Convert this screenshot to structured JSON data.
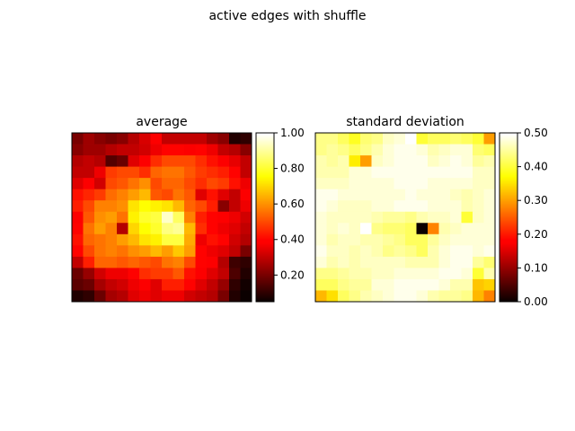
{
  "figure_title": "active edges with shuffle",
  "colormap": "hot",
  "colors": {
    "stops": [
      "#0b0000",
      "#ff0000",
      "#ffff00",
      "#ffffff"
    ],
    "frame": "#000000"
  },
  "chart_data": [
    {
      "type": "heatmap",
      "title": "average",
      "rows": 15,
      "cols": 16,
      "vmin": 0.05,
      "vmax": 1.0,
      "colorbar_ticks": [
        {
          "value": 0.2,
          "label": "0.20"
        },
        {
          "value": 0.4,
          "label": "0.40"
        },
        {
          "value": 0.6,
          "label": "0.60"
        },
        {
          "value": 0.8,
          "label": "0.80"
        },
        {
          "value": 1.0,
          "label": "1.00"
        }
      ],
      "values": [
        [
          0.2,
          0.25,
          0.22,
          0.2,
          0.22,
          0.28,
          0.33,
          0.38,
          0.3,
          0.3,
          0.3,
          0.3,
          0.25,
          0.22,
          0.08,
          0.1
        ],
        [
          0.22,
          0.25,
          0.25,
          0.28,
          0.3,
          0.3,
          0.32,
          0.36,
          0.4,
          0.4,
          0.38,
          0.4,
          0.36,
          0.3,
          0.28,
          0.22
        ],
        [
          0.28,
          0.3,
          0.28,
          0.15,
          0.18,
          0.34,
          0.38,
          0.46,
          0.5,
          0.5,
          0.5,
          0.46,
          0.42,
          0.38,
          0.35,
          0.3
        ],
        [
          0.3,
          0.3,
          0.36,
          0.48,
          0.5,
          0.5,
          0.46,
          0.54,
          0.56,
          0.56,
          0.52,
          0.48,
          0.46,
          0.44,
          0.4,
          0.3
        ],
        [
          0.34,
          0.38,
          0.32,
          0.5,
          0.52,
          0.56,
          0.6,
          0.5,
          0.54,
          0.54,
          0.5,
          0.46,
          0.5,
          0.48,
          0.42,
          0.36
        ],
        [
          0.42,
          0.45,
          0.48,
          0.55,
          0.58,
          0.62,
          0.66,
          0.52,
          0.5,
          0.56,
          0.52,
          0.34,
          0.42,
          0.34,
          0.3,
          0.38
        ],
        [
          0.44,
          0.5,
          0.58,
          0.58,
          0.6,
          0.72,
          0.76,
          0.74,
          0.72,
          0.66,
          0.54,
          0.5,
          0.44,
          0.22,
          0.3,
          0.36
        ],
        [
          0.38,
          0.52,
          0.6,
          0.62,
          0.56,
          0.74,
          0.8,
          0.82,
          0.95,
          0.85,
          0.58,
          0.44,
          0.4,
          0.38,
          0.36,
          0.32
        ],
        [
          0.4,
          0.56,
          0.62,
          0.58,
          0.28,
          0.7,
          0.76,
          0.8,
          0.88,
          0.9,
          0.66,
          0.46,
          0.4,
          0.36,
          0.34,
          0.3
        ],
        [
          0.42,
          0.54,
          0.56,
          0.58,
          0.62,
          0.66,
          0.72,
          0.74,
          0.82,
          0.82,
          0.64,
          0.36,
          0.42,
          0.4,
          0.32,
          0.28
        ],
        [
          0.4,
          0.5,
          0.56,
          0.58,
          0.56,
          0.6,
          0.62,
          0.66,
          0.62,
          0.68,
          0.62,
          0.4,
          0.36,
          0.34,
          0.3,
          0.2
        ],
        [
          0.3,
          0.44,
          0.54,
          0.54,
          0.52,
          0.54,
          0.52,
          0.5,
          0.56,
          0.58,
          0.5,
          0.4,
          0.38,
          0.28,
          0.12,
          0.1
        ],
        [
          0.18,
          0.24,
          0.32,
          0.36,
          0.36,
          0.4,
          0.46,
          0.48,
          0.48,
          0.52,
          0.42,
          0.38,
          0.34,
          0.3,
          0.14,
          0.08
        ],
        [
          0.16,
          0.18,
          0.26,
          0.3,
          0.32,
          0.36,
          0.38,
          0.34,
          0.44,
          0.44,
          0.4,
          0.34,
          0.3,
          0.24,
          0.1,
          0.06
        ],
        [
          0.08,
          0.1,
          0.18,
          0.26,
          0.28,
          0.34,
          0.36,
          0.34,
          0.36,
          0.36,
          0.32,
          0.3,
          0.28,
          0.2,
          0.08,
          0.05
        ]
      ]
    },
    {
      "type": "heatmap",
      "title": "standard deviation",
      "rows": 15,
      "cols": 16,
      "vmin": 0.0,
      "vmax": 0.5,
      "colorbar_ticks": [
        {
          "value": 0.0,
          "label": "0.00"
        },
        {
          "value": 0.1,
          "label": "0.10"
        },
        {
          "value": 0.2,
          "label": "0.20"
        },
        {
          "value": 0.3,
          "label": "0.30"
        },
        {
          "value": 0.4,
          "label": "0.40"
        },
        {
          "value": 0.5,
          "label": "0.50"
        }
      ],
      "values": [
        [
          0.44,
          0.44,
          0.42,
          0.39,
          0.43,
          0.44,
          0.47,
          0.48,
          0.5,
          0.4,
          0.42,
          0.42,
          0.43,
          0.42,
          0.4,
          0.3
        ],
        [
          0.44,
          0.45,
          0.44,
          0.42,
          0.44,
          0.46,
          0.48,
          0.49,
          0.49,
          0.48,
          0.46,
          0.47,
          0.48,
          0.48,
          0.43,
          0.42
        ],
        [
          0.46,
          0.45,
          0.46,
          0.36,
          0.3,
          0.47,
          0.48,
          0.49,
          0.49,
          0.49,
          0.47,
          0.48,
          0.49,
          0.48,
          0.45,
          0.46
        ],
        [
          0.46,
          0.46,
          0.46,
          0.48,
          0.48,
          0.49,
          0.49,
          0.49,
          0.49,
          0.49,
          0.49,
          0.49,
          0.49,
          0.49,
          0.47,
          0.47
        ],
        [
          0.47,
          0.47,
          0.47,
          0.48,
          0.48,
          0.48,
          0.48,
          0.49,
          0.49,
          0.49,
          0.48,
          0.48,
          0.48,
          0.48,
          0.47,
          0.47
        ],
        [
          0.49,
          0.49,
          0.48,
          0.48,
          0.48,
          0.48,
          0.48,
          0.48,
          0.49,
          0.48,
          0.48,
          0.48,
          0.47,
          0.46,
          0.47,
          0.48
        ],
        [
          0.49,
          0.48,
          0.47,
          0.47,
          0.47,
          0.48,
          0.48,
          0.49,
          0.49,
          0.49,
          0.48,
          0.48,
          0.48,
          0.46,
          0.47,
          0.48
        ],
        [
          0.48,
          0.47,
          0.47,
          0.47,
          0.47,
          0.46,
          0.45,
          0.45,
          0.44,
          0.46,
          0.47,
          0.47,
          0.48,
          0.4,
          0.47,
          0.48
        ],
        [
          0.48,
          0.47,
          0.48,
          0.47,
          0.5,
          0.44,
          0.43,
          0.43,
          0.42,
          0.0,
          0.28,
          0.46,
          0.47,
          0.48,
          0.48,
          0.48
        ],
        [
          0.48,
          0.46,
          0.47,
          0.47,
          0.46,
          0.46,
          0.45,
          0.44,
          0.42,
          0.42,
          0.45,
          0.47,
          0.48,
          0.48,
          0.48,
          0.48
        ],
        [
          0.49,
          0.47,
          0.47,
          0.46,
          0.47,
          0.46,
          0.44,
          0.45,
          0.44,
          0.42,
          0.46,
          0.48,
          0.49,
          0.49,
          0.48,
          0.49
        ],
        [
          0.48,
          0.46,
          0.47,
          0.46,
          0.47,
          0.47,
          0.47,
          0.47,
          0.46,
          0.46,
          0.46,
          0.48,
          0.49,
          0.49,
          0.45,
          0.43
        ],
        [
          0.44,
          0.44,
          0.45,
          0.46,
          0.46,
          0.47,
          0.47,
          0.48,
          0.48,
          0.48,
          0.48,
          0.49,
          0.49,
          0.48,
          0.4,
          0.46
        ],
        [
          0.42,
          0.42,
          0.44,
          0.45,
          0.45,
          0.48,
          0.48,
          0.49,
          0.49,
          0.49,
          0.49,
          0.48,
          0.46,
          0.46,
          0.33,
          0.34
        ],
        [
          0.32,
          0.35,
          0.42,
          0.44,
          0.46,
          0.47,
          0.48,
          0.49,
          0.49,
          0.48,
          0.46,
          0.45,
          0.45,
          0.44,
          0.32,
          0.28
        ]
      ]
    }
  ]
}
